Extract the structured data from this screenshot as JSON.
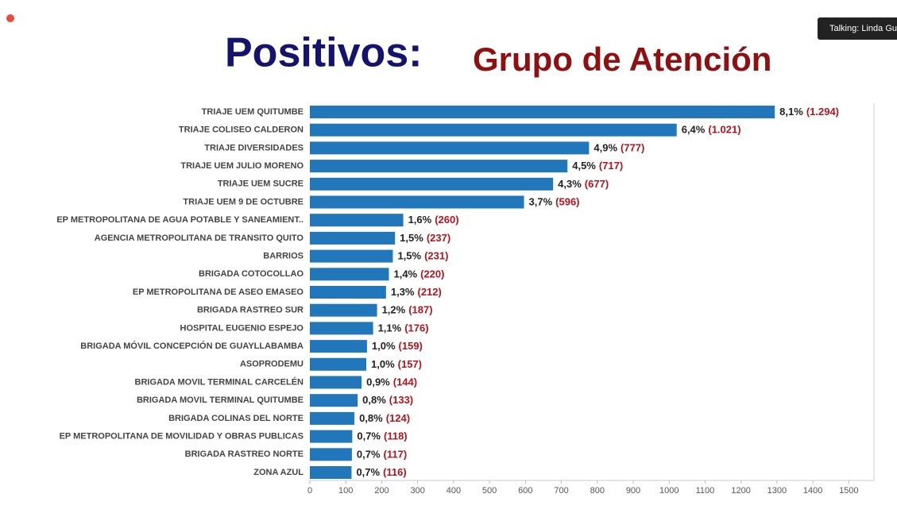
{
  "chart_data": {
    "type": "hbar",
    "title": "Positivos:",
    "subtitle": "Grupo de Atención",
    "overlay": "Talking: Linda Gua",
    "categories": [
      "TRIAJE UEM QUITUMBE",
      "TRIAJE COLISEO CALDERON",
      "TRIAJE DIVERSIDADES",
      "TRIAJE UEM JULIO MORENO",
      "TRIAJE UEM SUCRE",
      "TRIAJE UEM 9 DE OCTUBRE",
      "EP METROPOLITANA DE AGUA POTABLE Y SANEAMIENT..",
      "AGENCIA METROPOLITANA DE TRANSITO QUITO",
      "BARRIOS",
      "BRIGADA COTOCOLLAO",
      "EP METROPOLITANA DE ASEO EMASEO",
      "BRIGADA RASTREO SUR",
      "HOSPITAL EUGENIO ESPEJO",
      "BRIGADA MÓVIL CONCEPCIÓN DE GUAYLLABAMBA",
      "ASOPRODEMU",
      "BRIGADA MOVIL TERMINAL CARCELÉN",
      "BRIGADA MOVIL TERMINAL QUITUMBE",
      "BRIGADA COLINAS DEL NORTE",
      "EP METROPOLITANA DE MOVILIDAD Y OBRAS PUBLICAS",
      "BRIGADA RASTREO NORTE",
      "ZONA AZUL"
    ],
    "values": [
      1294,
      1021,
      777,
      717,
      677,
      596,
      260,
      237,
      231,
      220,
      212,
      187,
      176,
      159,
      157,
      144,
      133,
      124,
      118,
      117,
      116
    ],
    "value_labels": [
      "(1.294)",
      "(1.021)",
      "(777)",
      "(717)",
      "(677)",
      "(596)",
      "(260)",
      "(237)",
      "(231)",
      "(220)",
      "(212)",
      "(187)",
      "(176)",
      "(159)",
      "(157)",
      "(144)",
      "(133)",
      "(124)",
      "(118)",
      "(117)",
      "(116)"
    ],
    "percents": [
      8.1,
      6.4,
      4.9,
      4.5,
      4.3,
      3.7,
      1.6,
      1.5,
      1.5,
      1.4,
      1.3,
      1.2,
      1.1,
      1.0,
      1.0,
      0.9,
      0.8,
      0.8,
      0.7,
      0.7,
      0.7
    ],
    "percent_labels": [
      "8,1%",
      "6,4%",
      "4,9%",
      "4,5%",
      "4,3%",
      "3,7%",
      "1,6%",
      "1,5%",
      "1,5%",
      "1,4%",
      "1,3%",
      "1,2%",
      "1,1%",
      "1,0%",
      "1,0%",
      "0,9%",
      "0,8%",
      "0,8%",
      "0,7%",
      "0,7%",
      "0,7%"
    ],
    "color": "#2277bb",
    "xlim": [
      0,
      1570
    ],
    "xticks": [
      0,
      100,
      200,
      300,
      400,
      500,
      600,
      700,
      800,
      900,
      1000,
      1100,
      1200,
      1300,
      1400,
      1500
    ],
    "grid": false
  }
}
